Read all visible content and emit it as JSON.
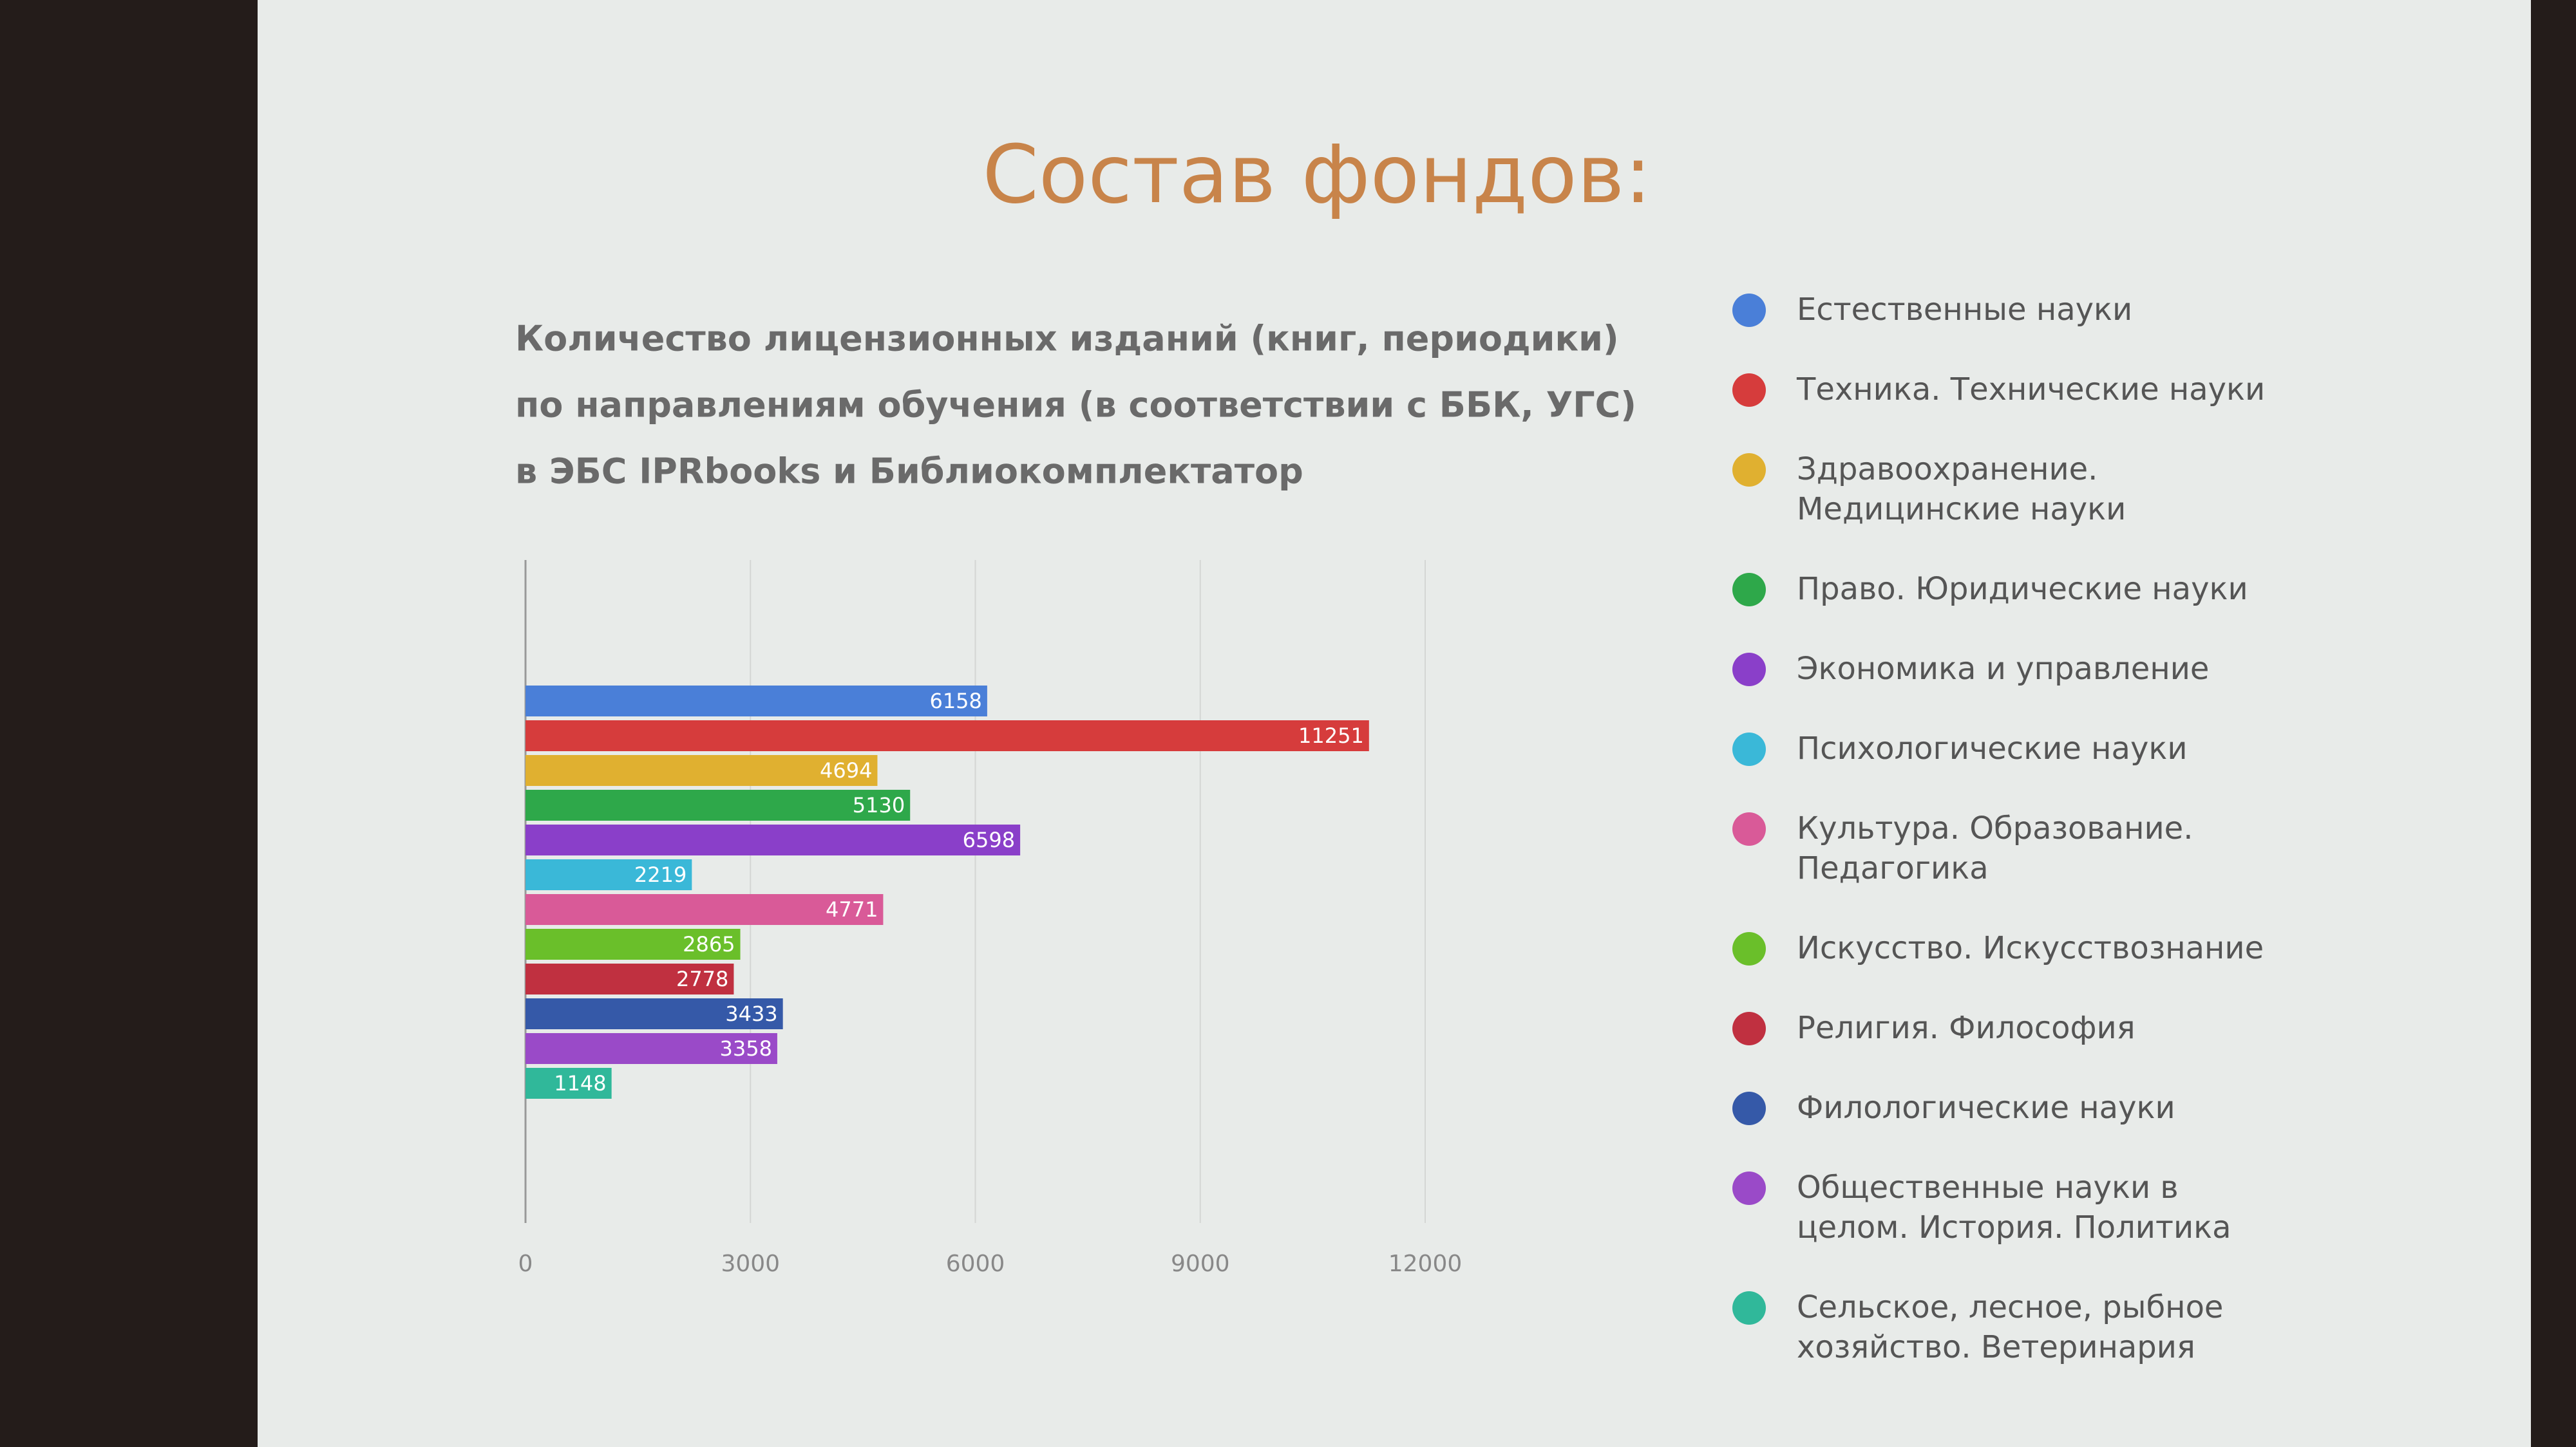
{
  "chart_data": {
    "type": "barh",
    "title": "Состав фондов:",
    "subtitle": [
      "Количество лицензионных изданий (книг, периодики)",
      "по направлениям обучения (в соответствии с ББК, УГС)",
      "в ЭБС IPRbooks и Библиокомплектатор"
    ],
    "categories": [
      "Естественные науки",
      "Техника. Технические науки",
      "Здравоохранение. Медицинские науки",
      "Право. Юридические науки",
      "Экономика и управление",
      "Психологические науки",
      "Культура. Образование. Педагогика",
      "Искусство. Искусствознание",
      "Религия. Философия",
      "Филологические науки",
      "Общественные науки в целом. История. Политика",
      "Сельское, лесное, рыбное хозяйство. Ветеринария"
    ],
    "values": [
      6158,
      11251,
      4694,
      5130,
      6598,
      2219,
      4771,
      2865,
      2778,
      3433,
      3358,
      1148
    ],
    "colors": [
      "#4a7fd8",
      "#d63c3c",
      "#e0b030",
      "#2ea84a",
      "#8a3fc9",
      "#3ab8d8",
      "#d95a98",
      "#6abf2a",
      "#c03040",
      "#3559a8",
      "#9a4ac8",
      "#30b89a"
    ],
    "xlim": [
      0,
      12000
    ],
    "xticks": [
      0,
      3000,
      6000,
      9000,
      12000
    ],
    "grid": true
  }
}
